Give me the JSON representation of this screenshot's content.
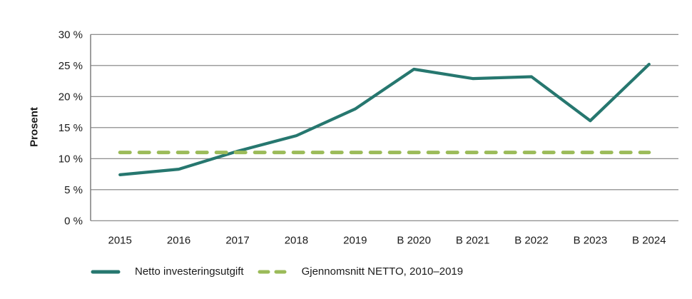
{
  "chart_data": {
    "type": "line",
    "title": "",
    "categories": [
      "2015",
      "2016",
      "2017",
      "2018",
      "2019",
      "B 2020",
      "B 2021",
      "B 2022",
      "B 2023",
      "B 2024"
    ],
    "series": [
      {
        "name": "Netto investeringsutgift",
        "values": [
          7.4,
          8.3,
          11.2,
          13.7,
          18.0,
          24.4,
          22.9,
          23.2,
          16.1,
          25.2
        ],
        "color": "#26776F",
        "style": "solid"
      },
      {
        "name": "Gjennomsnitt NETTO, 2010–2019",
        "values": [
          11,
          11,
          11,
          11,
          11,
          11,
          11,
          11,
          11,
          11
        ],
        "color": "#9BBB59",
        "style": "dashed"
      }
    ],
    "xlabel": "",
    "ylabel": "Prosent",
    "ylim": [
      0,
      30
    ],
    "ytick_labels": [
      "0 %",
      "5 %",
      "10 %",
      "15 %",
      "20 %",
      "25 %",
      "30 %"
    ],
    "grid": true,
    "legend_position": "bottom"
  },
  "colors": {
    "gridline": "#7F7F7F",
    "axis": "#7F7F7F",
    "text": "#1A1A1A",
    "background": "#FFFFFF"
  }
}
